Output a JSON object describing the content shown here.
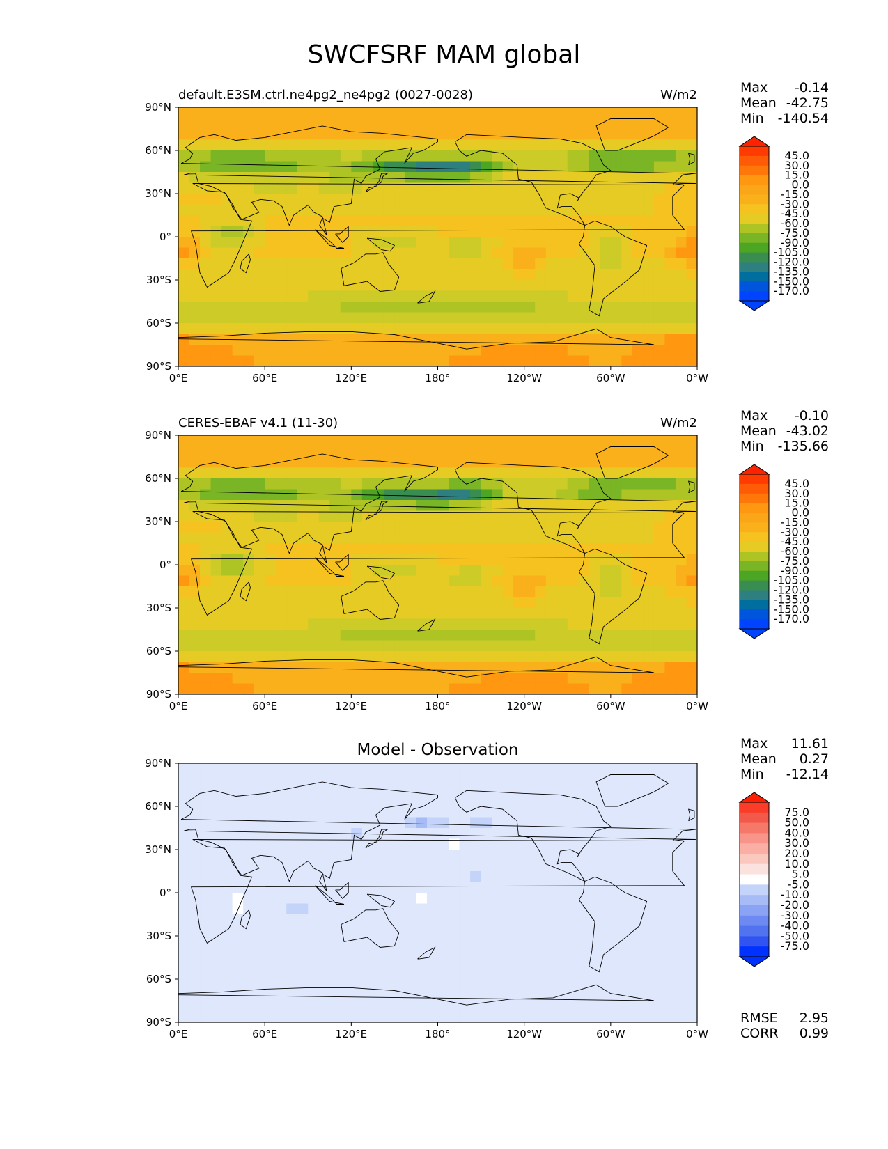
{
  "title": "SWCFSRF MAM global",
  "x_ticks": [
    "0°E",
    "60°E",
    "120°E",
    "180°",
    "120°W",
    "60°W",
    "0°W"
  ],
  "y_ticks": [
    "90°N",
    "60°N",
    "30°N",
    "0°",
    "30°S",
    "60°S",
    "90°S"
  ],
  "colors": {
    "test_ref": [
      "#0044FF",
      "#0055DD",
      "#006E9F",
      "#2E8080",
      "#3A8D50",
      "#4CA523",
      "#7AB526",
      "#ADC424",
      "#CCCB28",
      "#E6CB25",
      "#F5C21F",
      "#FAB01A",
      "#FBA518",
      "#FF9710",
      "#FF7708",
      "#FF5A06",
      "#FF3B02",
      "#FF2200"
    ],
    "diff": [
      "#0032FF",
      "#3053F2",
      "#5273EF",
      "#6C8AF2",
      "#8BA3F4",
      "#A7BBF7",
      "#C4D3FA",
      "#DEE7FC",
      "#FFFFFF",
      "#FCE2DE",
      "#FBC8C0",
      "#FAAEA4",
      "#F8948A",
      "#F57868",
      "#F2594A",
      "#FA3C28",
      "#FF1E00"
    ],
    "map_bg_test_ref": "#FAA519",
    "map_bg_diff": "#FFFFFF"
  },
  "chart_data": [
    {
      "type": "heatmap",
      "subtitle_left": "default.E3SM.ctrl.ne4pg2_ne4pg2 (0027-0028)",
      "subtitle_right": "W/m2",
      "stats": {
        "max_label": "Max",
        "max": "-0.14",
        "mean_label": "Mean",
        "mean": "-42.75",
        "min_label": "Min",
        "min": "-140.54"
      },
      "colorbar_levels": [
        "45.0",
        "30.0",
        "15.0",
        "0.0",
        "-15.0",
        "-30.0",
        "-45.0",
        "-60.0",
        "-75.0",
        "-90.0",
        "-105.0",
        "-120.0",
        "-135.0",
        "-150.0",
        "-170.0"
      ],
      "xlim": [
        0,
        360
      ],
      "ylim": [
        -90,
        90
      ]
    },
    {
      "type": "heatmap",
      "subtitle_left": "CERES-EBAF v4.1 (11-30)",
      "subtitle_right": "W/m2",
      "stats": {
        "max_label": "Max",
        "max": "-0.10",
        "mean_label": "Mean",
        "mean": "-43.02",
        "min_label": "Min",
        "min": "-135.66"
      },
      "colorbar_levels": [
        "45.0",
        "30.0",
        "15.0",
        "0.0",
        "-15.0",
        "-30.0",
        "-45.0",
        "-60.0",
        "-75.0",
        "-90.0",
        "-105.0",
        "-120.0",
        "-135.0",
        "-150.0",
        "-170.0"
      ],
      "xlim": [
        0,
        360
      ],
      "ylim": [
        -90,
        90
      ]
    },
    {
      "type": "heatmap",
      "subtitle_center": "Model - Observation",
      "stats": {
        "max_label": "Max",
        "max": "11.61",
        "mean_label": "Mean",
        "mean": "0.27",
        "min_label": "Min",
        "min": "-12.14"
      },
      "colorbar_levels": [
        "75.0",
        "50.0",
        "40.0",
        "30.0",
        "20.0",
        "10.0",
        "5.0",
        "-5.0",
        "-10.0",
        "-20.0",
        "-30.0",
        "-40.0",
        "-50.0",
        "-75.0"
      ],
      "extra_stats": {
        "rmse_label": "RMSE",
        "rmse": "2.95",
        "corr_label": "CORR",
        "corr": "0.99"
      },
      "xlim": [
        0,
        360
      ],
      "ylim": [
        -90,
        90
      ]
    }
  ]
}
